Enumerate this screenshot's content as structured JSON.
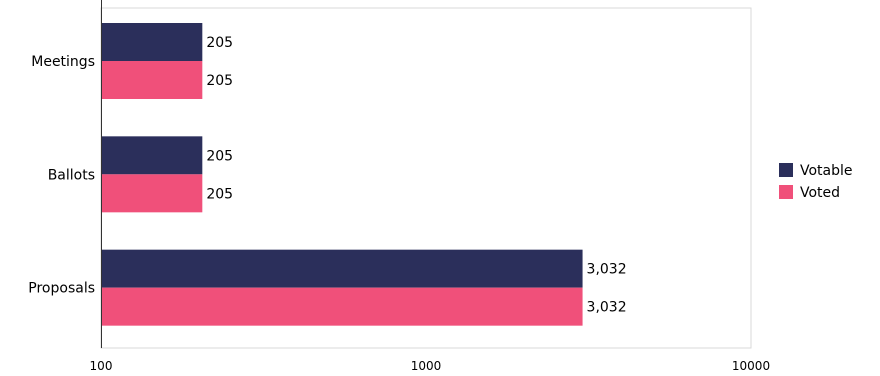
{
  "chart_data": {
    "type": "bar",
    "orientation": "horizontal",
    "x_scale": "log",
    "xlim": [
      100,
      10000
    ],
    "x_ticks": [
      100,
      1000,
      10000
    ],
    "x_tick_labels": [
      "100",
      "1000",
      "10000"
    ],
    "categories": [
      "Meetings",
      "Ballots",
      "Proposals"
    ],
    "series": [
      {
        "name": "Votable",
        "values": [
          205,
          205,
          3032
        ],
        "labels": [
          "205",
          "205",
          "3,032"
        ],
        "color": "#2b2f5b"
      },
      {
        "name": "Voted",
        "values": [
          205,
          205,
          3032
        ],
        "labels": [
          "205",
          "205",
          "3,032"
        ],
        "color": "#f0507a"
      }
    ],
    "legend_position": "right",
    "grid": false
  }
}
